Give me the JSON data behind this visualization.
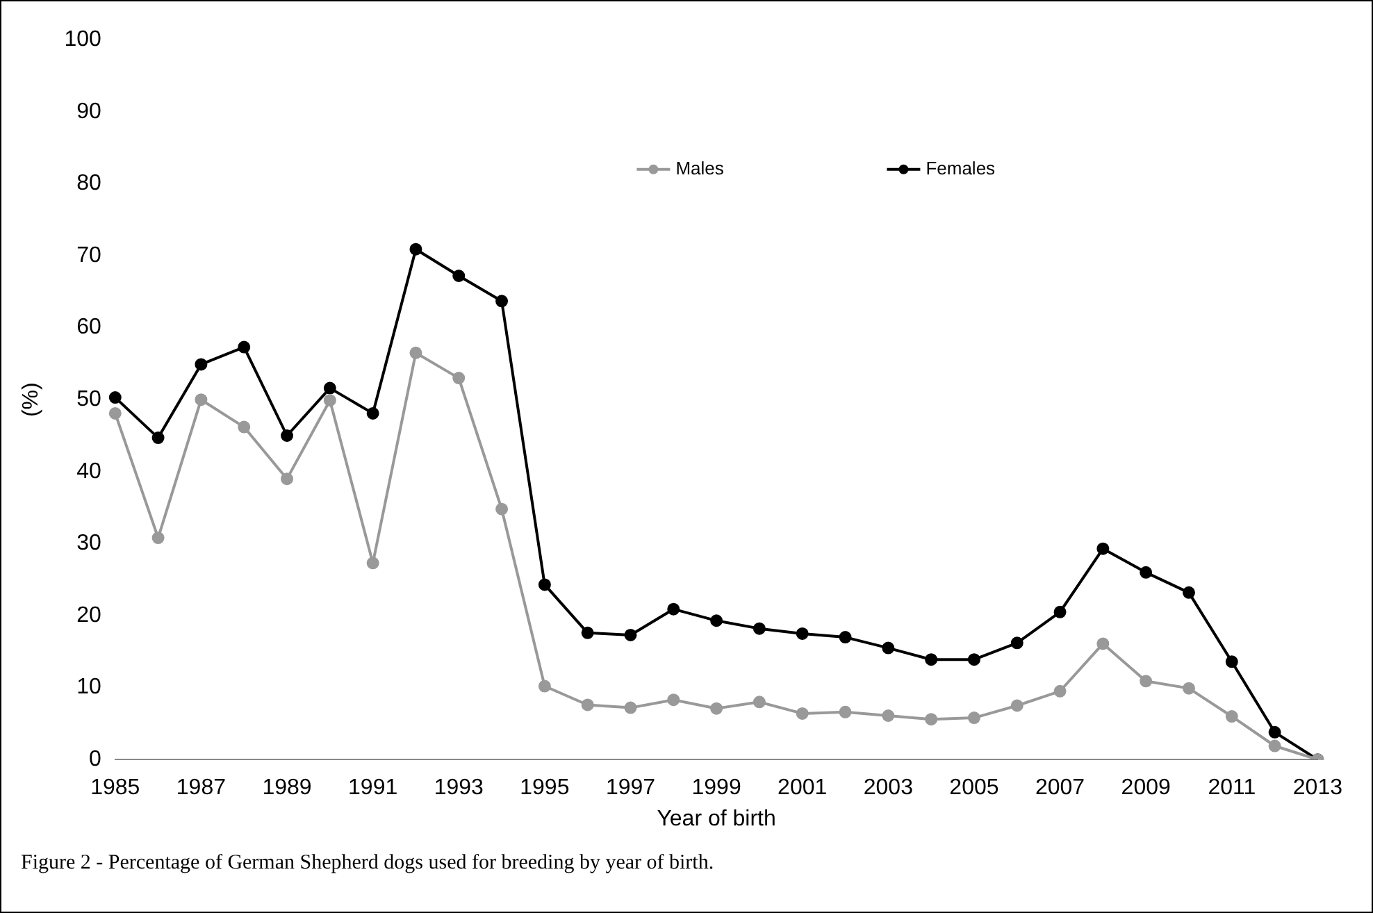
{
  "chart_data": {
    "type": "line",
    "xlabel": "Year of birth",
    "ylabel": "(%)",
    "categories": [
      "1985",
      null,
      "1987",
      null,
      "1989",
      null,
      "1991",
      null,
      "1993",
      null,
      "1995",
      null,
      "1997",
      null,
      "1999",
      null,
      "2001",
      null,
      "2003",
      null,
      "2005",
      null,
      "2007",
      null,
      "2009",
      null,
      "2011",
      null,
      "2013"
    ],
    "series": [
      {
        "name": "Males",
        "color": "#999999",
        "values": [
          48.1,
          30.8,
          50,
          46.2,
          39,
          49.9,
          27.3,
          56.5,
          53,
          34.8,
          10.2,
          7.6,
          7.2,
          8.3,
          7.1,
          8,
          6.4,
          6.6,
          6.1,
          5.6,
          5.8,
          7.5,
          9.5,
          16.1,
          10.9,
          9.9,
          6,
          1.9,
          0
        ]
      },
      {
        "name": "Females",
        "color": "#000000",
        "values": [
          50.3,
          44.7,
          54.9,
          57.3,
          45,
          51.6,
          48.1,
          70.9,
          67.2,
          63.7,
          24.3,
          17.6,
          17.3,
          20.9,
          19.3,
          18.2,
          17.5,
          17,
          15.5,
          13.9,
          13.9,
          16.2,
          20.5,
          29.3,
          26,
          23.2,
          13.6,
          3.8,
          0
        ]
      }
    ],
    "ylim": [
      0,
      100
    ],
    "yticks": [
      0,
      10,
      20,
      30,
      40,
      50,
      60,
      70,
      80,
      90,
      100
    ],
    "grid": false,
    "legend": "top right",
    "marker": "circle",
    "line_style": "solid",
    "annotations": [
      "Figure 2 - Percentage of German Shepherd dogs used for breeding by year of birth."
    ]
  }
}
